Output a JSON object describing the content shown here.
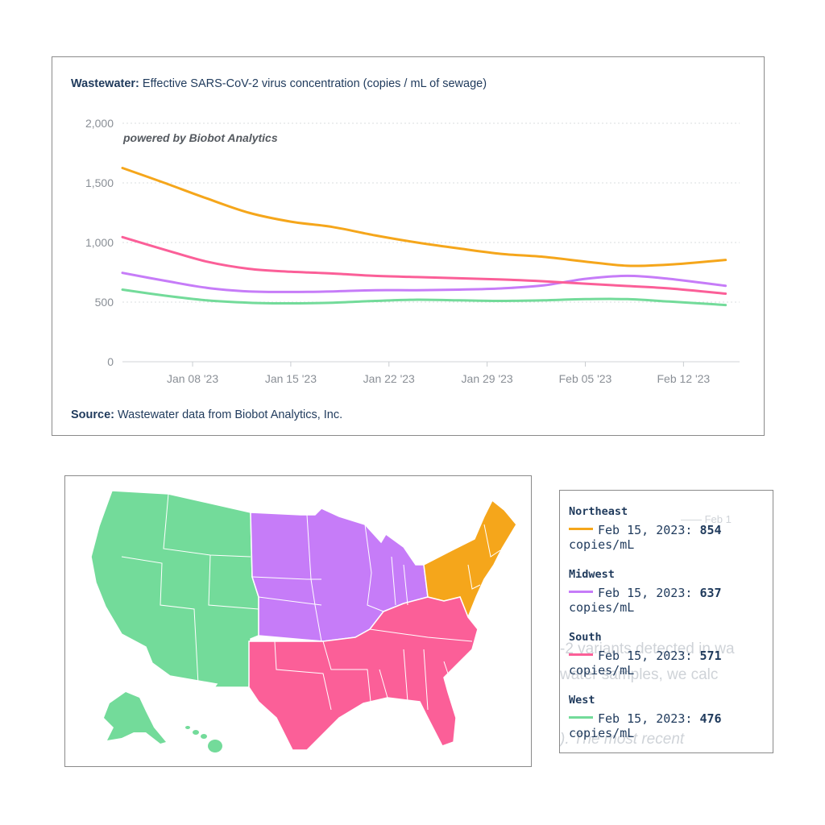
{
  "colors": {
    "Northeast": "#f5a61b",
    "Midwest": "#c67cf8",
    "South": "#fb5f98",
    "West": "#73db9a"
  },
  "chart": {
    "title_bold": "Wastewater:",
    "title_rest": " Effective SARS-CoV-2 virus concentration (copies / mL of sewage)",
    "watermark": "powered by Biobot Analytics",
    "source_bold": "Source:",
    "source_rest": " Wastewater data from Biobot Analytics, Inc."
  },
  "chart_data": {
    "type": "line",
    "title": "Wastewater: Effective SARS-CoV-2 virus concentration (copies / mL of sewage)",
    "ylim": [
      0,
      2000
    ],
    "y_ticks": [
      0,
      500,
      1000,
      1500,
      2000
    ],
    "y_tick_labels": [
      "0",
      "500",
      "1,000",
      "1,500",
      "2,000"
    ],
    "xlim": [
      "2023-01-03",
      "2023-02-16"
    ],
    "x_ticks": [
      "2023-01-08",
      "2023-01-15",
      "2023-01-22",
      "2023-01-29",
      "2023-02-05",
      "2023-02-12"
    ],
    "x_tick_labels": [
      "Jan 08 '23",
      "Jan 15 '23",
      "Jan 22 '23",
      "Jan 29 '23",
      "Feb 05 '23",
      "Feb 12 '23"
    ],
    "grid": true,
    "x": [
      "2023-01-03",
      "2023-01-06",
      "2023-01-09",
      "2023-01-12",
      "2023-01-15",
      "2023-01-18",
      "2023-01-21",
      "2023-01-24",
      "2023-01-27",
      "2023-01-30",
      "2023-02-02",
      "2023-02-05",
      "2023-02-08",
      "2023-02-11",
      "2023-02-15"
    ],
    "series": [
      {
        "name": "Northeast",
        "values": [
          1625,
          1500,
          1370,
          1250,
          1175,
          1130,
          1060,
          1000,
          950,
          905,
          880,
          840,
          805,
          815,
          854
        ]
      },
      {
        "name": "Midwest",
        "values": [
          745,
          680,
          620,
          590,
          585,
          590,
          600,
          600,
          605,
          615,
          640,
          695,
          720,
          695,
          637
        ]
      },
      {
        "name": "South",
        "values": [
          1045,
          940,
          840,
          780,
          755,
          740,
          720,
          710,
          700,
          690,
          675,
          655,
          635,
          615,
          571
        ]
      },
      {
        "name": "West",
        "values": [
          605,
          555,
          515,
          495,
          490,
          495,
          510,
          520,
          515,
          510,
          515,
          525,
          525,
          505,
          476
        ]
      }
    ]
  },
  "legend": [
    {
      "region": "Northeast",
      "text": "Feb 15, 2023:",
      "value": "854",
      "unit": "copies/mL"
    },
    {
      "region": "Midwest",
      "text": "Feb 15, 2023:",
      "value": "637",
      "unit": "copies/mL"
    },
    {
      "region": "South",
      "text": "Feb 15, 2023:",
      "value": "571",
      "unit": "copies/mL"
    },
    {
      "region": "West",
      "text": "Feb 15, 2023:",
      "value": "476",
      "unit": "copies/mL"
    }
  ]
}
